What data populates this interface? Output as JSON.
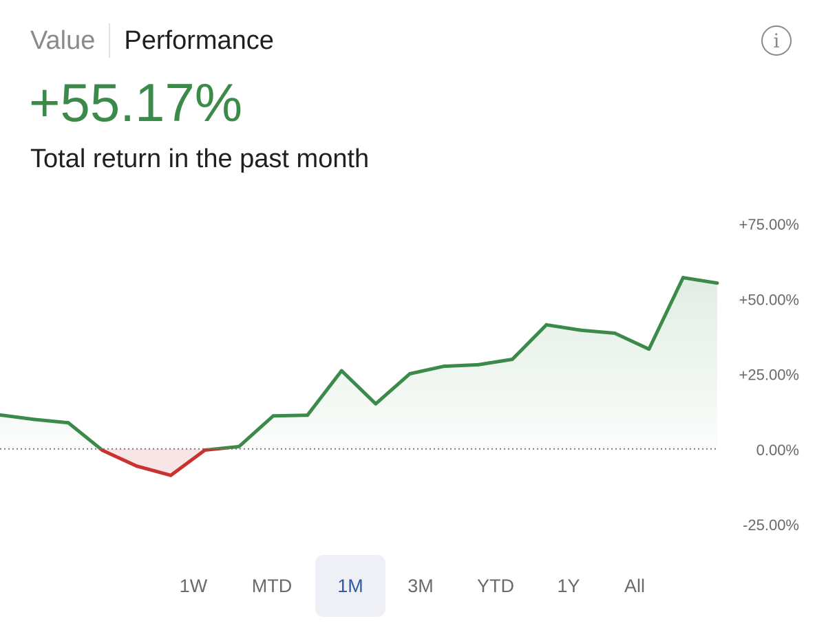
{
  "tabs": [
    {
      "label": "Value",
      "active": false
    },
    {
      "label": "Performance",
      "active": true
    }
  ],
  "info_icon": {
    "name": "info-icon",
    "glyph": "i"
  },
  "summary": {
    "value": "+55.17%",
    "caption": "Total return in the past month"
  },
  "colors": {
    "positive": "#3b8a4a",
    "negative": "#c8322f",
    "active_range_text": "#2c5aa8",
    "active_range_bg": "#eef0f5"
  },
  "chart_data": {
    "type": "area",
    "title": "",
    "xlabel": "",
    "ylabel": "",
    "y_ticks": [
      {
        "value": 75,
        "label": "+75.00%"
      },
      {
        "value": 50,
        "label": "+50.00%"
      },
      {
        "value": 25,
        "label": "+25.00%"
      },
      {
        "value": 0,
        "label": "0.00%"
      },
      {
        "value": -25,
        "label": "-25.00%"
      }
    ],
    "ylim": [
      -25,
      75
    ],
    "baseline": 0,
    "grid": false,
    "series": [
      {
        "values": [
          11.3,
          9.8,
          8.7,
          -0.5,
          -5.7,
          -8.8,
          -0.4,
          0.8,
          11.0,
          11.2,
          26.0,
          15.0,
          25.0,
          27.5,
          28.0,
          29.8,
          41.3,
          39.5,
          38.5,
          33.2,
          57.0,
          55.17
        ]
      }
    ],
    "axis_position": "right"
  },
  "ranges": [
    {
      "label": "1W",
      "active": false
    },
    {
      "label": "MTD",
      "active": false
    },
    {
      "label": "1M",
      "active": true
    },
    {
      "label": "3M",
      "active": false
    },
    {
      "label": "YTD",
      "active": false
    },
    {
      "label": "1Y",
      "active": false
    },
    {
      "label": "All",
      "active": false
    }
  ]
}
